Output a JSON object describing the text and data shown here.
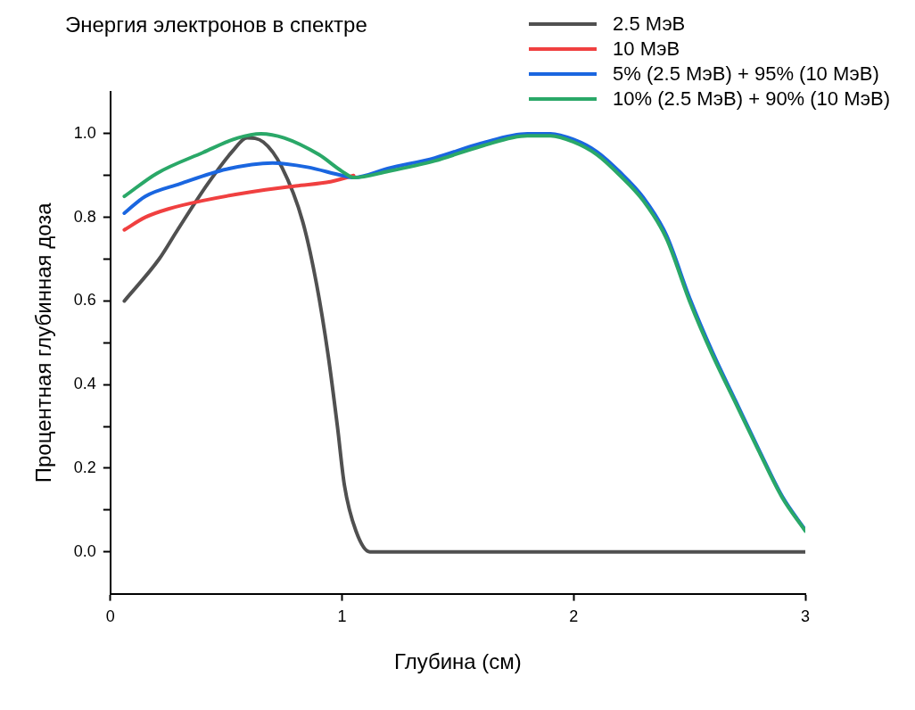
{
  "chart_data": {
    "type": "line",
    "legend_title": "Энергия электронов в спектре",
    "xlabel": "Глубина (см)",
    "ylabel": "Процентная глубинная доза",
    "xlim": [
      0,
      3
    ],
    "ylim": [
      -0.1,
      1.1
    ],
    "xticks": [
      0,
      1,
      2,
      3
    ],
    "yticks": [
      {
        "value": 0,
        "label": "0.0"
      },
      {
        "value": 0.1,
        "label": null
      },
      {
        "value": 0.2,
        "label": "0.2"
      },
      {
        "value": 0.3,
        "label": null
      },
      {
        "value": 0.4,
        "label": "0.4"
      },
      {
        "value": 0.5,
        "label": null
      },
      {
        "value": 0.6,
        "label": "0.6"
      },
      {
        "value": 0.7,
        "label": null
      },
      {
        "value": 0.8,
        "label": "0.8"
      },
      {
        "value": 0.9,
        "label": null
      },
      {
        "value": 1,
        "label": "1.0"
      }
    ],
    "grid": false,
    "legend": "top right",
    "marker": "none",
    "line_style": "solid",
    "series": [
      {
        "name": "2.5 МэВ",
        "color": "#505050",
        "x": [
          0.06,
          0.21,
          0.29,
          0.42,
          0.53,
          0.59,
          0.66,
          0.74,
          0.83,
          0.89,
          0.94,
          0.98,
          1.01,
          1.06,
          1.12,
          1.19,
          3.0
        ],
        "values": [
          0.6,
          0.7,
          0.77,
          0.88,
          0.96,
          0.99,
          0.98,
          0.92,
          0.79,
          0.64,
          0.47,
          0.3,
          0.16,
          0.05,
          0.0,
          0.0,
          0.0
        ]
      },
      {
        "name": "10 МэВ",
        "color": "#f04040",
        "x": [
          0.06,
          0.15,
          0.25,
          0.4,
          0.6,
          0.8,
          0.95,
          1.05
        ],
        "values": [
          0.77,
          0.8,
          0.82,
          0.84,
          0.86,
          0.875,
          0.885,
          0.9
        ]
      },
      {
        "name": "5% (2.5 МэВ) + 95% (10 МэВ)",
        "color": "#1a66e0",
        "x": [
          0.06,
          0.15,
          0.3,
          0.5,
          0.7,
          0.85,
          1.0,
          1.05,
          1.2,
          1.4,
          1.6,
          1.8,
          1.9,
          2.0,
          2.1,
          2.2,
          2.3,
          2.4,
          2.5,
          2.6,
          2.7,
          2.8,
          2.9,
          3.0
        ],
        "values": [
          0.81,
          0.85,
          0.88,
          0.915,
          0.93,
          0.92,
          0.9,
          0.895,
          0.917,
          0.942,
          0.977,
          1.0,
          1.0,
          0.986,
          0.957,
          0.908,
          0.848,
          0.758,
          0.608,
          0.477,
          0.36,
          0.244,
          0.133,
          0.052
        ]
      },
      {
        "name": "10% (2.5 МэВ) + 90% (10 МэВ)",
        "color": "#2aa868",
        "x": [
          0.06,
          0.2,
          0.4,
          0.55,
          0.65,
          0.75,
          0.9,
          1.0,
          1.05,
          1.2,
          1.4,
          1.6,
          1.8,
          1.9,
          2.0,
          2.1,
          2.2,
          2.3,
          2.4,
          2.5,
          2.6,
          2.7,
          2.8,
          2.9,
          3.0
        ],
        "values": [
          0.85,
          0.905,
          0.955,
          0.99,
          1.0,
          0.99,
          0.95,
          0.91,
          0.895,
          0.91,
          0.935,
          0.97,
          0.995,
          0.995,
          0.98,
          0.95,
          0.9,
          0.84,
          0.75,
          0.6,
          0.47,
          0.355,
          0.24,
          0.13,
          0.05
        ]
      }
    ]
  }
}
